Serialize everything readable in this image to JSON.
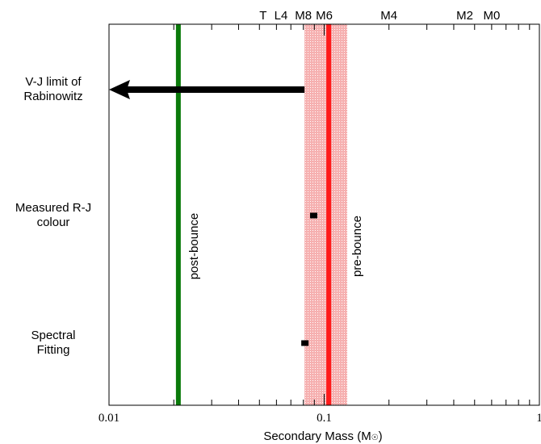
{
  "chart_data": {
    "type": "scatter",
    "xscale": "log",
    "xlim": [
      0.01,
      1
    ],
    "x_ticks": [
      {
        "value": 0.01,
        "label": "0.01"
      },
      {
        "value": 0.1,
        "label": "0.1"
      },
      {
        "value": 1,
        "label": "1"
      }
    ],
    "xlabel": "Secondary Mass (M",
    "xlabel_symbol": "☉",
    "xlabel_suffix": ")",
    "top_axis_labels": [
      {
        "label": "T",
        "x": 0.052
      },
      {
        "label": "L4",
        "x": 0.063
      },
      {
        "label": "M8",
        "x": 0.08
      },
      {
        "label": "M6",
        "x": 0.1
      },
      {
        "label": "M4",
        "x": 0.2
      },
      {
        "label": "M2",
        "x": 0.45
      },
      {
        "label": "M0",
        "x": 0.6
      }
    ],
    "y_categories": [
      {
        "id": "vj",
        "lines": [
          "V-J limit of",
          "Rabinowitz"
        ]
      },
      {
        "id": "rj",
        "lines": [
          "Measured R-J",
          "colour"
        ]
      },
      {
        "id": "spec",
        "lines": [
          "Spectral",
          "Fitting"
        ]
      }
    ],
    "vertical_lines": [
      {
        "x": 0.021,
        "label": "post-bounce",
        "color": "#0a7a0a"
      },
      {
        "x": 0.105,
        "label": "pre-bounce",
        "color": "#ff1a1a"
      }
    ],
    "shaded_band": {
      "x_range": [
        0.081,
        0.128
      ],
      "color": "#f4a3a3"
    },
    "upper_limit_arrow": {
      "category": "vj",
      "from_x": 0.081,
      "to_x": 0.01,
      "color": "#000000"
    },
    "points": [
      {
        "category": "rj",
        "x": 0.089
      },
      {
        "category": "spec",
        "x": 0.081
      }
    ]
  }
}
